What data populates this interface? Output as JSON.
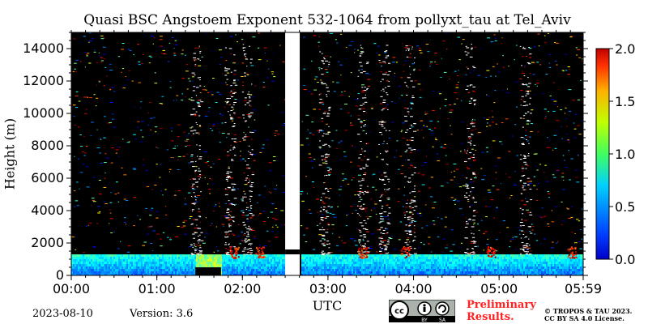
{
  "figure": {
    "title": "Quasi BSC Angstoem Exponent 532-1064 from pollyxt_tau at Tel_Aviv",
    "date": "2023-08-10",
    "version": "Version: 3.6",
    "preliminary_line1": "Preliminary",
    "preliminary_line2": "Results.",
    "copyright_line1": "© TROPOS & TAU 2023.",
    "copyright_line2": "CC BY SA 4.0 License.",
    "cc_badge": {
      "by_label": "BY",
      "sa_label": "SA",
      "icon": "cc-by-sa-icon"
    }
  },
  "chart_data": {
    "type": "heatmap",
    "title": "Quasi BSC Angstoem Exponent 532-1064 from pollyxt_tau at Tel_Aviv",
    "xlabel": "UTC",
    "ylabel": "Height (m)",
    "x_ticks": [
      "00:00",
      "01:00",
      "02:00",
      "03:00",
      "04:00",
      "05:00",
      "05:59"
    ],
    "x_range_hours": [
      0,
      5.983
    ],
    "y_ticks": [
      0,
      2000,
      4000,
      6000,
      8000,
      10000,
      12000,
      14000
    ],
    "ylim": [
      0,
      15000
    ],
    "colorbar": {
      "range": [
        0.0,
        2.0
      ],
      "ticks": [
        "0.0",
        "0.5",
        "1.0",
        "1.5",
        "2.0"
      ],
      "colormap": "jet"
    },
    "background_color": "#000000",
    "nodata_gap_hours": [
      2.5,
      2.67
    ],
    "boundary_layer_top_m": 1300,
    "boundary_layer_value": 0.45,
    "cloud_columns_hours": [
      1.45,
      1.85,
      2.05,
      2.95,
      3.4,
      3.65,
      3.95,
      4.65,
      5.3
    ]
  }
}
